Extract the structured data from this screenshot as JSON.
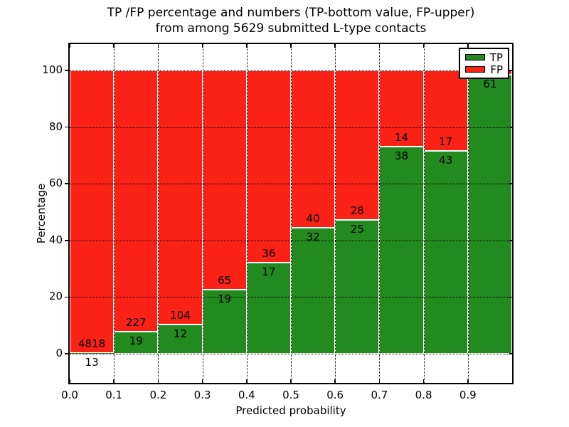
{
  "figure": {
    "title_line1": "TP /FP percentage and numbers (TP-bottom value, FP-upper)",
    "title_line2": "from among 5629 submitted L-type contacts"
  },
  "chart_data": {
    "type": "bar",
    "stacked": true,
    "normalized": "each bar totals 100%",
    "title": "TP /FP percentage and numbers (TP-bottom value, FP-upper) from among 5629 submitted L-type contacts",
    "total_submitted_contacts": 5629,
    "xlabel": "Predicted probability",
    "ylabel": "Percentage",
    "xlim": [
      0.0,
      1.0
    ],
    "ylim": [
      -10,
      110
    ],
    "xticks": [
      "0.0",
      "0.1",
      "0.2",
      "0.3",
      "0.4",
      "0.5",
      "0.6",
      "0.7",
      "0.8",
      "0.9"
    ],
    "yticks": [
      "0",
      "20",
      "40",
      "60",
      "80",
      "100"
    ],
    "grid": "dotted",
    "colors": {
      "tp": "#228a1e",
      "fp": "#fa2116",
      "bar_edge": "#ffffff",
      "grid": "#000000"
    },
    "legend": {
      "position": "upper right",
      "entries": [
        {
          "label": "TP",
          "color": "#228a1e"
        },
        {
          "label": "FP",
          "color": "#fa2116"
        }
      ]
    },
    "bins": [
      {
        "range": [
          0.0,
          0.1
        ],
        "tp": 13,
        "fp": 4818,
        "tp_pct": 0.27,
        "fp_pct": 99.73,
        "tp_label": "13",
        "fp_label": "4818"
      },
      {
        "range": [
          0.1,
          0.2
        ],
        "tp": 19,
        "fp": 227,
        "tp_pct": 7.72,
        "fp_pct": 92.28,
        "tp_label": "19",
        "fp_label": "227"
      },
      {
        "range": [
          0.2,
          0.3
        ],
        "tp": 12,
        "fp": 104,
        "tp_pct": 10.34,
        "fp_pct": 89.66,
        "tp_label": "12",
        "fp_label": "104"
      },
      {
        "range": [
          0.3,
          0.4
        ],
        "tp": 19,
        "fp": 65,
        "tp_pct": 22.62,
        "fp_pct": 77.38,
        "tp_label": "19",
        "fp_label": "65"
      },
      {
        "range": [
          0.4,
          0.5
        ],
        "tp": 17,
        "fp": 36,
        "tp_pct": 32.08,
        "fp_pct": 67.92,
        "tp_label": "17",
        "fp_label": "36"
      },
      {
        "range": [
          0.5,
          0.6
        ],
        "tp": 32,
        "fp": 40,
        "tp_pct": 44.44,
        "fp_pct": 55.56,
        "tp_label": "32",
        "fp_label": "40"
      },
      {
        "range": [
          0.6,
          0.7
        ],
        "tp": 25,
        "fp": 28,
        "tp_pct": 47.17,
        "fp_pct": 52.83,
        "tp_label": "25",
        "fp_label": "28"
      },
      {
        "range": [
          0.7,
          0.8
        ],
        "tp": 38,
        "fp": 14,
        "tp_pct": 73.08,
        "fp_pct": 26.92,
        "tp_label": "38",
        "fp_label": "14"
      },
      {
        "range": [
          0.8,
          0.9
        ],
        "tp": 43,
        "fp": 17,
        "tp_pct": 71.67,
        "fp_pct": 28.33,
        "tp_label": "43",
        "fp_label": "17"
      },
      {
        "range": [
          0.9,
          1.0
        ],
        "tp": 61,
        "fp": null,
        "tp_pct": 98.39,
        "fp_pct": 1.61,
        "tp_label": "61",
        "fp_label": ""
      }
    ],
    "series": [
      {
        "name": "TP",
        "position": "bottom",
        "color": "#228a1e",
        "counts": [
          13,
          19,
          12,
          19,
          17,
          32,
          25,
          38,
          43,
          61
        ],
        "values_pct": [
          0.27,
          7.72,
          10.34,
          22.62,
          32.08,
          44.44,
          47.17,
          73.08,
          71.67,
          98.39
        ]
      },
      {
        "name": "FP",
        "position": "top",
        "color": "#fa2116",
        "visible_counts": [
          "4818",
          "227",
          "104",
          "65",
          "36",
          "40",
          "28",
          "14",
          "17",
          ""
        ],
        "values_pct": [
          99.73,
          92.28,
          89.66,
          77.38,
          67.92,
          55.56,
          52.83,
          26.92,
          28.33,
          1.61
        ]
      }
    ]
  }
}
